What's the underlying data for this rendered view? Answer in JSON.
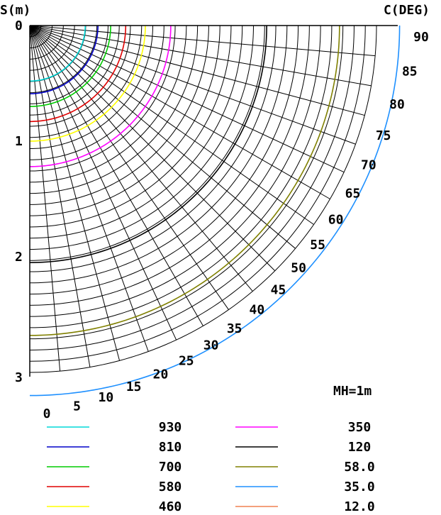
{
  "chart_data": {
    "type": "polar-isolux",
    "xlabel": "S(m)",
    "ylabel": "C(DEG)",
    "annotation": "MH=1m",
    "radial_range": [
      0,
      3
    ],
    "radial_ticks": [
      "0",
      "1",
      "2",
      "3"
    ],
    "angle_range_deg": [
      0,
      90
    ],
    "angle_ticks": [
      "0",
      "5",
      "10",
      "15",
      "20",
      "25",
      "30",
      "35",
      "40",
      "45",
      "50",
      "55",
      "60",
      "65",
      "70",
      "75",
      "80",
      "85",
      "90"
    ],
    "grid": true,
    "series": [
      {
        "name": "930",
        "radius_m": 0.48,
        "color": "#00d8d8"
      },
      {
        "name": "810",
        "radius_m": 0.59,
        "color": "#0000c8"
      },
      {
        "name": "700",
        "radius_m": 0.7,
        "color": "#00cc00"
      },
      {
        "name": "580",
        "radius_m": 0.83,
        "color": "#e00000"
      },
      {
        "name": "460",
        "radius_m": 1.0,
        "color": "#ffff00"
      },
      {
        "name": "350",
        "radius_m": 1.22,
        "color": "#ff00ff"
      },
      {
        "name": "120",
        "radius_m": 2.05,
        "color": "#000000"
      },
      {
        "name": "58.0",
        "radius_m": 2.68,
        "color": "#808000"
      },
      {
        "name": "35.0",
        "radius_m": 3.2,
        "color": "#1e90ff"
      },
      {
        "name": "12.0",
        "radius_m": null,
        "color": "#f08050"
      }
    ]
  }
}
